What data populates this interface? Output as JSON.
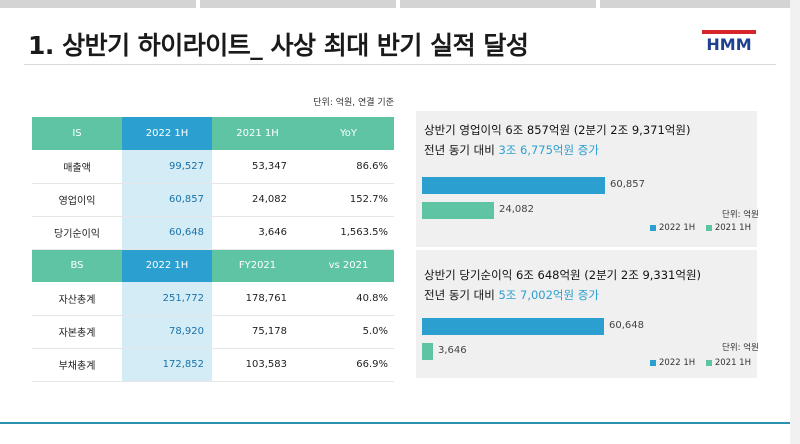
{
  "title": "1. 상반기 하이라이트_ 사상 최대 반기 실적 달성",
  "logo_text": "HMM",
  "colors": {
    "teal": "#5fc4a4",
    "blue": "#2a9fd0",
    "highlight_col": "#d4ecf6",
    "bar_2022": "#2a9fd0",
    "bar_2021": "#5fc4a4",
    "logo_blue": "#1f3f8f",
    "logo_red": "#d7262b"
  },
  "unit_note": "단위: 억원, 연결 기준",
  "is_table": {
    "headers": [
      "IS",
      "2022 1H",
      "2021 1H",
      "YoY"
    ],
    "rows": [
      [
        "매출액",
        "99,527",
        "53,347",
        "86.6%"
      ],
      [
        "영업이익",
        "60,857",
        "24,082",
        "152.7%"
      ],
      [
        "당기순이익",
        "60,648",
        "3,646",
        "1,563.5%"
      ]
    ]
  },
  "bs_table": {
    "headers": [
      "BS",
      "2022 1H",
      "FY2021",
      "vs 2021"
    ],
    "rows": [
      [
        "자산총계",
        "251,772",
        "178,761",
        "40.8%"
      ],
      [
        "자본총계",
        "78,920",
        "75,178",
        "5.0%"
      ],
      [
        "부채총계",
        "172,852",
        "103,583",
        "66.9%"
      ]
    ]
  },
  "panel1": {
    "head": "상반기 영업이익 6조 857억원 (2분기 2조 9,371억원)",
    "sub_prefix": "전년 동기 대비 ",
    "sub_highlight": "3조 6,775억원 증가",
    "unit": "단위: 억원",
    "legend": [
      "2022 1H",
      "2021 1H"
    ]
  },
  "panel2": {
    "head": "상반기 당기순이익 6조 648억원 (2분기 2조 9,331억원)",
    "sub_prefix": "전년 동기 대비 ",
    "sub_highlight": "5조 7,002억원 증가",
    "unit": "단위: 억원",
    "legend": [
      "2022 1H",
      "2021 1H"
    ]
  },
  "chart_data": [
    {
      "type": "bar",
      "orientation": "horizontal",
      "series": [
        {
          "name": "2022 1H",
          "values": [
            60857
          ]
        },
        {
          "name": "2021 1H",
          "values": [
            24082
          ]
        }
      ],
      "data_labels": [
        "60,857",
        "24,082"
      ],
      "xlim": [
        0,
        80000
      ],
      "legend": "bottom-right"
    },
    {
      "type": "bar",
      "orientation": "horizontal",
      "series": [
        {
          "name": "2022 1H",
          "values": [
            60648
          ]
        },
        {
          "name": "2021 1H",
          "values": [
            3646
          ]
        }
      ],
      "data_labels": [
        "60,648",
        "3,646"
      ],
      "xlim": [
        0,
        80000
      ],
      "legend": "bottom-right"
    }
  ]
}
